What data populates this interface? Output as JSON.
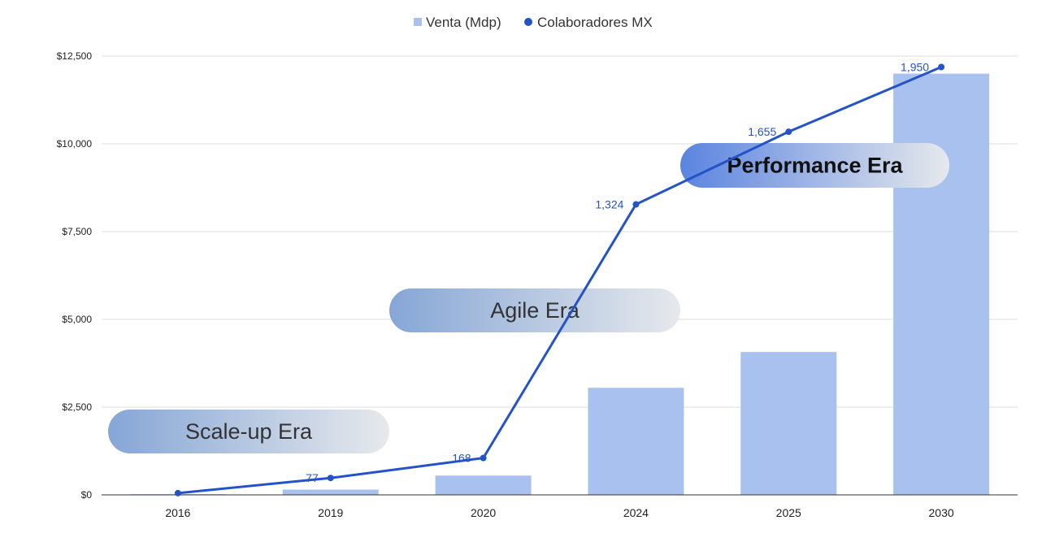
{
  "chart_data": {
    "type": "bar",
    "title": "",
    "xlabel": "",
    "ylabel": "",
    "categories": [
      "2016",
      "2019",
      "2020",
      "2024",
      "2025",
      "2030"
    ],
    "ylim": [
      0,
      12500
    ],
    "yticks": [
      0,
      2500,
      5000,
      7500,
      10000,
      12500
    ],
    "ytick_labels": [
      "$0",
      "$2,500",
      "$5,000",
      "$7,500",
      "$10,000",
      "$12,500"
    ],
    "grid": true,
    "legend_position": "top-center",
    "series": [
      {
        "name": "Venta (Mdp)",
        "type": "bar",
        "color": "#a9c1ef",
        "values": [
          20,
          150,
          550,
          3050,
          4070,
          12000
        ]
      },
      {
        "name": "Colaboradores MX",
        "type": "line",
        "color": "#2453c9",
        "axis": "secondary",
        "ylim": [
          0,
          2000
        ],
        "values": [
          8,
          77,
          168,
          1324,
          1655,
          1950
        ],
        "data_labels": [
          "",
          "77",
          "168",
          "1,324",
          "1,655",
          "1,950"
        ]
      }
    ],
    "annotations": [
      {
        "text": "Scale-up Era",
        "near": "2016-2019",
        "value": 1200
      },
      {
        "text": "Agile Era",
        "near": "2020-2024",
        "value": 5000
      },
      {
        "text": "Performance Era",
        "near": "2025-2030",
        "value": 9400
      }
    ]
  }
}
